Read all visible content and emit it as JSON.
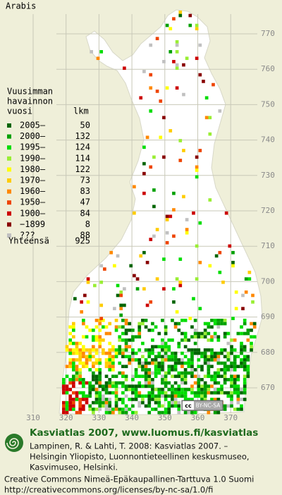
{
  "title": "Arabis",
  "legend": {
    "heading": [
      "Vuusimman",
      "havainnon",
      "vuosi"
    ],
    "count_heading": "lkm",
    "rows": [
      {
        "label": "2005–",
        "count": 50,
        "color": "#006400"
      },
      {
        "label": "2000–",
        "count": 132,
        "color": "#00a000"
      },
      {
        "label": "1995–",
        "count": 124,
        "color": "#00dd00"
      },
      {
        "label": "1990–",
        "count": 114,
        "color": "#99ee33"
      },
      {
        "label": "1980–",
        "count": 122,
        "color": "#ffff00"
      },
      {
        "label": "1970–",
        "count": 73,
        "color": "#ffcc00"
      },
      {
        "label": "1960–",
        "count": 83,
        "color": "#ff8800"
      },
      {
        "label": "1950–",
        "count": 47,
        "color": "#ee4400"
      },
      {
        "label": "1900–",
        "count": 84,
        "color": "#cc0000"
      },
      {
        "label": "−1899",
        "count": 8,
        "color": "#880000"
      },
      {
        "label": "???",
        "count": 88,
        "color": "#c0c0c0"
      }
    ],
    "total_label": "Yhteensä",
    "total": 925
  },
  "grid": {
    "x_labels": [
      310,
      320,
      330,
      340,
      350,
      360,
      370
    ],
    "y_labels": [
      770,
      760,
      750,
      740,
      730,
      720,
      710,
      700,
      690,
      680,
      670
    ]
  },
  "badge": {
    "cc": "cc",
    "license": "BY-NC-SA"
  },
  "footer": {
    "site": "Kasviatlas 2007, www.luomus.fi/kasviatlas",
    "citation": [
      "Lampinen, R. & Lahti, T. 2008: Kasviatlas 2007. –",
      "Helsingin Yliopisto, Luonnontieteellinen keskusmuseo,",
      "Kasvimuseo, Helsinki."
    ],
    "license": [
      "Creative Commons Nimeä-Epäkaupallinen-Tarttuva 1.0 Suomi",
      "http://creativecommons.org/licenses/by-nc-sa/1.0/fi"
    ]
  }
}
